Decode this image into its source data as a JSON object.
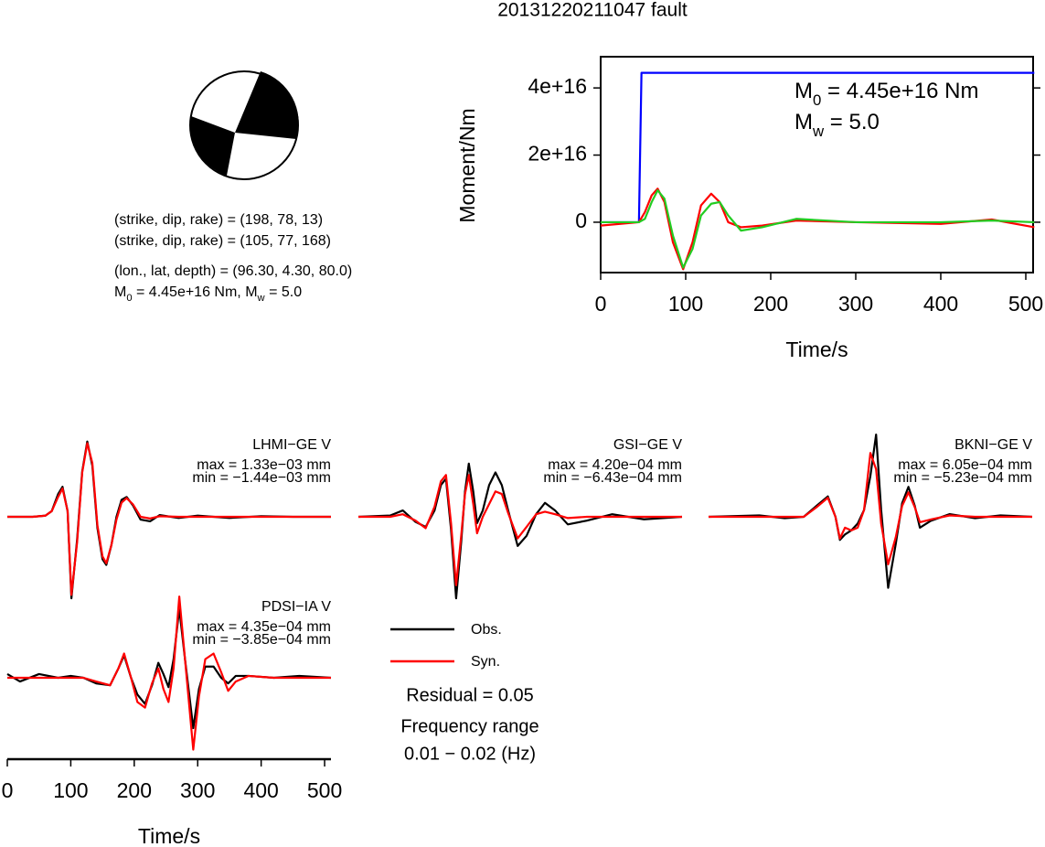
{
  "title": "20131220211047 fault",
  "mechanism": {
    "planes": [
      "(strike, dip, rake) = (198, 78, 13)",
      "(strike, dip, rake) = (105, 77, 168)"
    ],
    "location": "(lon., lat, depth) = (96.30, 4.30, 80.0)",
    "moment_line": [
      {
        "text": "M"
      },
      {
        "sub": "0"
      },
      {
        "text": " = 4.45e+16 Nm, M"
      },
      {
        "sub": "w"
      },
      {
        "text": " = 5.0"
      }
    ]
  },
  "residual": "Residual = 0.05",
  "frequency_range": [
    "Frequency range",
    "0.01 − 0.02 (Hz)"
  ],
  "chart_data": [
    {
      "type": "line",
      "y_label": "Moment/Nm",
      "x_label": "Time/s",
      "xlim": [
        0,
        510
      ],
      "ylim": [
        -1.5e+16,
        4.93e+16
      ],
      "xticks": [
        0,
        100,
        200,
        300,
        400,
        500
      ],
      "yticks": [
        0,
        {
          "value": 2e+16,
          "label": "2e+16"
        },
        {
          "value": 4e+16,
          "label": "4e+16"
        }
      ],
      "annotations": [
        [
          {
            "text": "M"
          },
          {
            "sub": "0"
          },
          {
            "text": " = 4.45e+16 Nm"
          }
        ],
        [
          {
            "text": "M"
          },
          {
            "sub": "w"
          },
          {
            "text": " = 5.0"
          }
        ]
      ],
      "series": [
        {
          "color": "#0000ff",
          "x": [
            0,
            45,
            48,
            510
          ],
          "values": [
            0,
            0,
            4.45e+16,
            4.45e+16
          ]
        },
        {
          "color": "#ff0000",
          "x": [
            0,
            45,
            52,
            60,
            67,
            75,
            85,
            97,
            108,
            118,
            130,
            140,
            150,
            165,
            190,
            230,
            300,
            400,
            460,
            510
          ],
          "values": [
            -1000000000000000.0,
            0,
            3000000000000000.0,
            8000000000000000.0,
            1e+16,
            6000000000000000.0,
            -6000000000000000.0,
            -1.4e+16,
            -6000000000000000.0,
            5000000000000000.0,
            8500000000000000.0,
            6000000000000000.0,
            0,
            -1500000000000000.0,
            -1000000000000000.0,
            500000000000000.0,
            0,
            -500000000000000.0,
            800000000000000.0,
            -1500000000000000.0
          ]
        },
        {
          "color": "#22cc22",
          "x": [
            0,
            45,
            52,
            60,
            67,
            75,
            85,
            97,
            108,
            118,
            130,
            140,
            150,
            165,
            190,
            230,
            300,
            400,
            460,
            510
          ],
          "values": [
            0,
            0,
            1000000000000000.0,
            6000000000000000.0,
            9500000000000000.0,
            7000000000000000.0,
            -4000000000000000.0,
            -1.35e+16,
            -8000000000000000.0,
            2000000000000000.0,
            5500000000000000.0,
            6000000000000000.0,
            2000000000000000.0,
            -2500000000000000.0,
            -1500000000000000.0,
            1000000000000000.0,
            0,
            0,
            500000000000000.0,
            0
          ]
        }
      ]
    },
    {
      "type": "line",
      "station": "LHMI−GE V",
      "max_label": "max = 1.33e−03 mm",
      "min_label": "min = −1.44e−03 mm",
      "xlim": [
        0,
        510
      ],
      "ylim": [
        -0.0016,
        0.0016
      ],
      "x": [
        0,
        40,
        60,
        70,
        80,
        87,
        95,
        101,
        110,
        118,
        126,
        134,
        142,
        150,
        156,
        164,
        172,
        180,
        188,
        198,
        210,
        225,
        240,
        270,
        300,
        350,
        400,
        450,
        510
      ],
      "series": [
        {
          "name": "Obs.",
          "color": "#000000",
          "values": [
            0,
            0,
            2e-05,
            0.0001,
            0.0004,
            0.00053,
            0.0001,
            -0.00144,
            -0.0004,
            0.0008,
            0.00133,
            0.0009,
            -0.0002,
            -0.00075,
            -0.00085,
            -0.0005,
            0,
            0.0003,
            0.00035,
            0.0002,
            -5e-05,
            -8e-05,
            3e-05,
            -2e-05,
            2e-05,
            -2e-05,
            1e-05,
            0,
            0
          ]
        },
        {
          "name": "Syn.",
          "color": "#ff0000",
          "values": [
            0,
            0,
            2e-05,
            0.0001,
            0.00035,
            0.0005,
            0.0001,
            -0.00138,
            -0.00045,
            0.00078,
            0.0013,
            0.00095,
            -0.00015,
            -0.0007,
            -0.00082,
            -0.0005,
            -5e-05,
            0.00025,
            0.00033,
            0.00022,
            0,
            -3e-05,
            1e-05,
            0,
            0,
            0,
            0,
            0,
            0
          ]
        }
      ]
    },
    {
      "type": "line",
      "station": "GSI−GE V",
      "max_label": "max = 4.20e−04 mm",
      "min_label": "min = −6.43e−04 mm",
      "xlim": [
        0,
        510
      ],
      "ylim": [
        -0.0007,
        0.0007
      ],
      "x": [
        0,
        50,
        70,
        90,
        106,
        120,
        130,
        138,
        146,
        154,
        162,
        168,
        174,
        181,
        187,
        196,
        206,
        216,
        226,
        236,
        251,
        265,
        280,
        294,
        310,
        330,
        360,
        400,
        450,
        510
      ],
      "series": [
        {
          "name": "Obs.",
          "color": "#000000",
          "values": [
            0,
            1e-05,
            5e-05,
            -4e-05,
            -8e-05,
            5e-05,
            0.00025,
            0.0003,
            -0.0001,
            -0.000643,
            -0.0002,
            0.0002,
            0.00042,
            0.0002,
            -5e-05,
            5e-05,
            0.00025,
            0.00035,
            0.00025,
            5e-05,
            -0.00023,
            -0.00015,
            2e-05,
            0.00011,
            5e-05,
            -6e-05,
            -3e-05,
            2e-05,
            -2e-05,
            0
          ]
        },
        {
          "name": "Syn.",
          "color": "#ff0000",
          "values": [
            0,
            0,
            2e-05,
            -3e-05,
            -9e-05,
            8e-05,
            0.00028,
            0.00033,
            -5e-05,
            -0.00054,
            -0.00015,
            0.00018,
            0.00033,
            0.0001,
            -0.00013,
            0,
            0.0001,
            0.0002,
            0.00018,
            3e-05,
            -0.00017,
            -8e-05,
            2e-05,
            4e-05,
            2e-05,
            -1e-05,
            0,
            0,
            0,
            0
          ]
        }
      ]
    },
    {
      "type": "line",
      "station": "BKNI−GE V",
      "max_label": "max = 6.05e−04 mm",
      "min_label": "min = −5.23e−04 mm",
      "xlim": [
        0,
        510
      ],
      "ylim": [
        -0.0007,
        0.0007
      ],
      "x": [
        0,
        80,
        120,
        150,
        170,
        188,
        200,
        207,
        215,
        225,
        235,
        245,
        255,
        264,
        272,
        283,
        295,
        305,
        315,
        325,
        333,
        350,
        380,
        420,
        460,
        510
      ],
      "series": [
        {
          "name": "Obs.",
          "color": "#000000",
          "values": [
            0,
            1e-05,
            -1e-05,
            0,
            8e-05,
            0.00015,
            0,
            -0.00017,
            -0.00013,
            -0.0001,
            -5e-05,
            5e-05,
            0.0003,
            0.000605,
            5e-05,
            -0.000523,
            -0.0002,
            0.0001,
            0.00022,
            8e-05,
            -8e-05,
            -3e-05,
            2e-05,
            -1e-05,
            1e-05,
            0
          ]
        },
        {
          "name": "Syn.",
          "color": "#ff0000",
          "values": [
            0,
            0,
            0,
            0,
            7e-05,
            0.00014,
            0,
            -0.00016,
            -8e-05,
            -0.0001,
            -8e-05,
            5e-05,
            0.00047,
            0.00035,
            -5e-05,
            -0.00035,
            -0.00015,
            8e-05,
            0.00018,
            7e-05,
            -4e-05,
            -2e-05,
            1e-05,
            0,
            0,
            0
          ]
        }
      ]
    },
    {
      "type": "line",
      "station": "PDSI−IA V",
      "max_label": "max = 4.35e−04 mm",
      "min_label": "min = −3.85e−04 mm",
      "x_label": "Time/s",
      "xlim": [
        0,
        510
      ],
      "ylim": [
        -0.0005,
        0.0005
      ],
      "xticks": [
        0,
        100,
        200,
        300,
        400,
        500
      ],
      "x": [
        0,
        20,
        50,
        80,
        100,
        120,
        140,
        162,
        175,
        184,
        195,
        205,
        217,
        228,
        238,
        246,
        254,
        262,
        271,
        280,
        293,
        302,
        312,
        325,
        337,
        348,
        360,
        380,
        420,
        460,
        510
      ],
      "series": [
        {
          "name": "Obs.",
          "color": "#000000",
          "values": [
            2e-05,
            -2e-05,
            2e-05,
            0,
            1e-05,
            0,
            -3e-05,
            -4e-05,
            5e-05,
            0.00012,
            0,
            -9e-05,
            -0.00014,
            -4e-05,
            8e-05,
            2e-05,
            -5e-05,
            0.0001,
            0.00037,
            0.0001,
            -0.00027,
            -6e-05,
            6e-05,
            6e-05,
            0,
            -3e-05,
            1e-05,
            1e-05,
            0,
            1e-05,
            0
          ]
        },
        {
          "name": "Syn.",
          "color": "#ff0000",
          "values": [
            0,
            0,
            0,
            0,
            0,
            0,
            -2e-05,
            -4e-05,
            5e-05,
            0.00013,
            0,
            -0.00013,
            -0.00016,
            -3e-05,
            5e-05,
            -6e-05,
            -0.00013,
            5e-05,
            0.000435,
            0.0001,
            -0.000385,
            -0.0001,
            0.0001,
            0.00013,
            3e-05,
            -7e-05,
            -2e-05,
            1e-05,
            0,
            0,
            0
          ]
        }
      ]
    }
  ]
}
